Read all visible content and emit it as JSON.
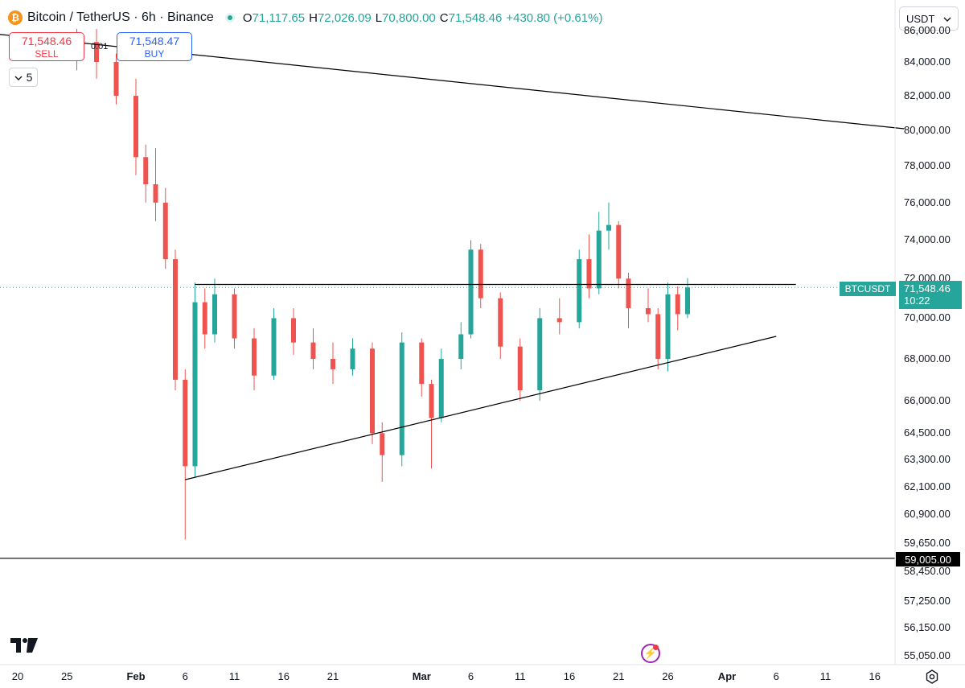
{
  "header": {
    "coin_icon_char": "₿",
    "symbol": "Bitcoin / TetherUS · 6h · Binance",
    "open_label": "O",
    "open": "71,117.65",
    "high_label": "H",
    "high": "72,026.09",
    "low_label": "L",
    "low": "70,800.00",
    "close_label": "C",
    "close": "71,548.46",
    "change": "+430.80 (+0.61%)"
  },
  "trade": {
    "sell_price": "71,548.46",
    "sell_label": "SELL",
    "buy_price": "71,548.47",
    "buy_label": "BUY",
    "spread": "0.01",
    "orders_count": "5"
  },
  "currency_select": "USDT",
  "price_axis_ticks": [
    "86,000.00",
    "84,000.00",
    "82,000.00",
    "80,000.00",
    "78,000.00",
    "76,000.00",
    "74,000.00",
    "72,000.00",
    "70,000.00",
    "68,000.00",
    "66,000.00",
    "64,500.00",
    "63,300.00",
    "62,100.00",
    "60,900.00",
    "59,650.00",
    "58,450.00",
    "57,250.00",
    "56,150.00",
    "55,050.00"
  ],
  "time_axis_ticks": [
    "20",
    "25",
    "Feb",
    "6",
    "11",
    "16",
    "21",
    "Mar",
    "6",
    "11",
    "16",
    "21",
    "26",
    "Apr",
    "6",
    "11",
    "16"
  ],
  "badges": {
    "symbol": "BTCUSDT",
    "last_price": "71,548.46",
    "countdown": "10:22",
    "horizontal_line_price": "59,005.00"
  },
  "colors": {
    "up": "#26a69a",
    "down": "#ef5350",
    "line": "#000000"
  },
  "chart_data": {
    "type": "candlestick",
    "interval": "6h",
    "y_scale": "log",
    "ylim": [
      54800,
      86500
    ],
    "x_range": [
      "2024-01-18",
      "2024-04-20"
    ],
    "last_price": 71548.46,
    "ohlc_sample": [
      {
        "d": "2024-01-26",
        "o": 84500,
        "h": 86000,
        "l": 83500,
        "c": 85200
      },
      {
        "d": "2024-01-28",
        "o": 85200,
        "h": 86000,
        "l": 83000,
        "c": 84000
      },
      {
        "d": "2024-01-30",
        "o": 84000,
        "h": 84500,
        "l": 81500,
        "c": 82000
      },
      {
        "d": "2024-02-01",
        "o": 82000,
        "h": 83000,
        "l": 77500,
        "c": 78500
      },
      {
        "d": "2024-02-02",
        "o": 78500,
        "h": 79200,
        "l": 76000,
        "c": 77000
      },
      {
        "d": "2024-02-03",
        "o": 77000,
        "h": 79000,
        "l": 75000,
        "c": 76000
      },
      {
        "d": "2024-02-04",
        "o": 76000,
        "h": 76800,
        "l": 72500,
        "c": 73000
      },
      {
        "d": "2024-02-05",
        "o": 73000,
        "h": 73500,
        "l": 66500,
        "c": 67000
      },
      {
        "d": "2024-02-06",
        "o": 67000,
        "h": 67500,
        "l": 59800,
        "c": 63000
      },
      {
        "d": "2024-02-07",
        "o": 63000,
        "h": 71800,
        "l": 62500,
        "c": 70800
      },
      {
        "d": "2024-02-08",
        "o": 70800,
        "h": 71500,
        "l": 68500,
        "c": 69200
      },
      {
        "d": "2024-02-09",
        "o": 69200,
        "h": 72000,
        "l": 68800,
        "c": 71200
      },
      {
        "d": "2024-02-11",
        "o": 71200,
        "h": 71500,
        "l": 68500,
        "c": 69000
      },
      {
        "d": "2024-02-13",
        "o": 69000,
        "h": 69500,
        "l": 66500,
        "c": 67200
      },
      {
        "d": "2024-02-15",
        "o": 67200,
        "h": 70500,
        "l": 67000,
        "c": 70000
      },
      {
        "d": "2024-02-17",
        "o": 70000,
        "h": 70500,
        "l": 68200,
        "c": 68800
      },
      {
        "d": "2024-02-19",
        "o": 68800,
        "h": 69500,
        "l": 67500,
        "c": 68000
      },
      {
        "d": "2024-02-21",
        "o": 68000,
        "h": 68800,
        "l": 66800,
        "c": 67500
      },
      {
        "d": "2024-02-23",
        "o": 67500,
        "h": 69000,
        "l": 67200,
        "c": 68500
      },
      {
        "d": "2024-02-25",
        "o": 68500,
        "h": 68800,
        "l": 64000,
        "c": 64500
      },
      {
        "d": "2024-02-26",
        "o": 64500,
        "h": 65000,
        "l": 62300,
        "c": 63500
      },
      {
        "d": "2024-02-28",
        "o": 63500,
        "h": 69300,
        "l": 63000,
        "c": 68800
      },
      {
        "d": "2024-03-01",
        "o": 68800,
        "h": 69000,
        "l": 66200,
        "c": 66800
      },
      {
        "d": "2024-03-02",
        "o": 66800,
        "h": 67000,
        "l": 62900,
        "c": 65200
      },
      {
        "d": "2024-03-03",
        "o": 65200,
        "h": 68500,
        "l": 65000,
        "c": 68000
      },
      {
        "d": "2024-03-05",
        "o": 68000,
        "h": 69800,
        "l": 67500,
        "c": 69200
      },
      {
        "d": "2024-03-06",
        "o": 69200,
        "h": 74000,
        "l": 69000,
        "c": 73500
      },
      {
        "d": "2024-03-07",
        "o": 73500,
        "h": 73800,
        "l": 70500,
        "c": 71000
      },
      {
        "d": "2024-03-09",
        "o": 71000,
        "h": 71300,
        "l": 68000,
        "c": 68600
      },
      {
        "d": "2024-03-11",
        "o": 68600,
        "h": 69000,
        "l": 66000,
        "c": 66500
      },
      {
        "d": "2024-03-13",
        "o": 66500,
        "h": 70500,
        "l": 66000,
        "c": 70000
      },
      {
        "d": "2024-03-15",
        "o": 70000,
        "h": 71000,
        "l": 69200,
        "c": 69800
      },
      {
        "d": "2024-03-17",
        "o": 69800,
        "h": 73500,
        "l": 69500,
        "c": 73000
      },
      {
        "d": "2024-03-18",
        "o": 73000,
        "h": 74300,
        "l": 71000,
        "c": 71500
      },
      {
        "d": "2024-03-19",
        "o": 71500,
        "h": 75500,
        "l": 71200,
        "c": 74500
      },
      {
        "d": "2024-03-20",
        "o": 74500,
        "h": 76000,
        "l": 73500,
        "c": 74800
      },
      {
        "d": "2024-03-21",
        "o": 74800,
        "h": 75000,
        "l": 71500,
        "c": 72000
      },
      {
        "d": "2024-03-22",
        "o": 72000,
        "h": 72300,
        "l": 69500,
        "c": 70500
      },
      {
        "d": "2024-03-24",
        "o": 70500,
        "h": 71500,
        "l": 69800,
        "c": 70200
      },
      {
        "d": "2024-03-25",
        "o": 70200,
        "h": 70500,
        "l": 67500,
        "c": 68000
      },
      {
        "d": "2024-03-26",
        "o": 68000,
        "h": 71800,
        "l": 67400,
        "c": 71200
      },
      {
        "d": "2024-03-27",
        "o": 71200,
        "h": 71600,
        "l": 69400,
        "c": 70200
      },
      {
        "d": "2024-03-28",
        "o": 70200,
        "h": 72026,
        "l": 70000,
        "c": 71548
      }
    ],
    "drawings": [
      {
        "kind": "descending-resistance",
        "from": {
          "d": "2024-01-16",
          "p": 85800
        },
        "to": {
          "d": "2024-04-19",
          "p": 80100
        }
      },
      {
        "kind": "horizontal-resistance",
        "from": {
          "d": "2024-02-07",
          "p": 71700
        },
        "to": {
          "d": "2024-04-08",
          "p": 71700
        }
      },
      {
        "kind": "ascending-support",
        "from": {
          "d": "2024-02-06",
          "p": 62400
        },
        "to": {
          "d": "2024-04-06",
          "p": 69100
        }
      },
      {
        "kind": "horizontal-line",
        "price": 59005
      }
    ]
  }
}
